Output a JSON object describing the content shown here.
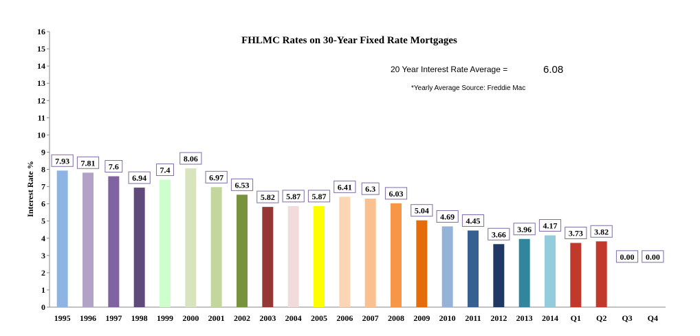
{
  "chart_data": {
    "type": "bar",
    "title": "FHLMC Rates on 30-Year Fixed Rate Mortgages",
    "ylabel": "Interest Rate %",
    "xlabel": "",
    "ylim": [
      0,
      16
    ],
    "yticks": [
      0,
      1,
      2,
      3,
      4,
      5,
      6,
      7,
      8,
      9,
      10,
      11,
      12,
      13,
      14,
      15,
      16
    ],
    "grid": false,
    "legend": "none",
    "categories": [
      "1995",
      "1996",
      "1997",
      "1998",
      "1999",
      "2000",
      "2001",
      "2002",
      "2003",
      "2004",
      "2005",
      "2006",
      "2007",
      "2008",
      "2009",
      "2010",
      "2011",
      "2012",
      "2013",
      "2014",
      "Q1",
      "Q2",
      "Q3",
      "Q4"
    ],
    "values": [
      7.93,
      7.81,
      7.6,
      6.94,
      7.4,
      8.06,
      6.97,
      6.53,
      5.82,
      5.87,
      5.87,
      6.41,
      6.3,
      6.03,
      5.04,
      4.69,
      4.45,
      3.66,
      3.96,
      4.17,
      3.73,
      3.82,
      0,
      0
    ],
    "value_labels": [
      "7.93",
      "7.81",
      "7.6",
      "6.94",
      "7.4",
      "8.06",
      "6.97",
      "6.53",
      "5.82",
      "5.87",
      "5.87",
      "6.41",
      "6.3",
      "6.03",
      "5.04",
      "4.69",
      "4.45",
      "3.66",
      "3.96",
      "4.17",
      "3.73",
      "3.82",
      "0.00",
      "0.00"
    ],
    "bar_colors": [
      "#8db4e2",
      "#b3a2c7",
      "#8064a2",
      "#604a7b",
      "#ccffcc",
      "#d7e4bd",
      "#c3d69b",
      "#77933c",
      "#953735",
      "#f2dcdb",
      "#ffff00",
      "#fcd5b5",
      "#fac090",
      "#f79646",
      "#e46c0a",
      "#95b3d7",
      "#376092",
      "#1f3864",
      "#31859c",
      "#93cddd",
      "#c0392b",
      "#c0392b",
      "#ffffff",
      "#ffffff"
    ],
    "annotations": {
      "average_label": "20 Year Interest Rate Average =",
      "average_value": "6.08",
      "source": "*Yearly Average Source:  Freddie Mac"
    }
  }
}
